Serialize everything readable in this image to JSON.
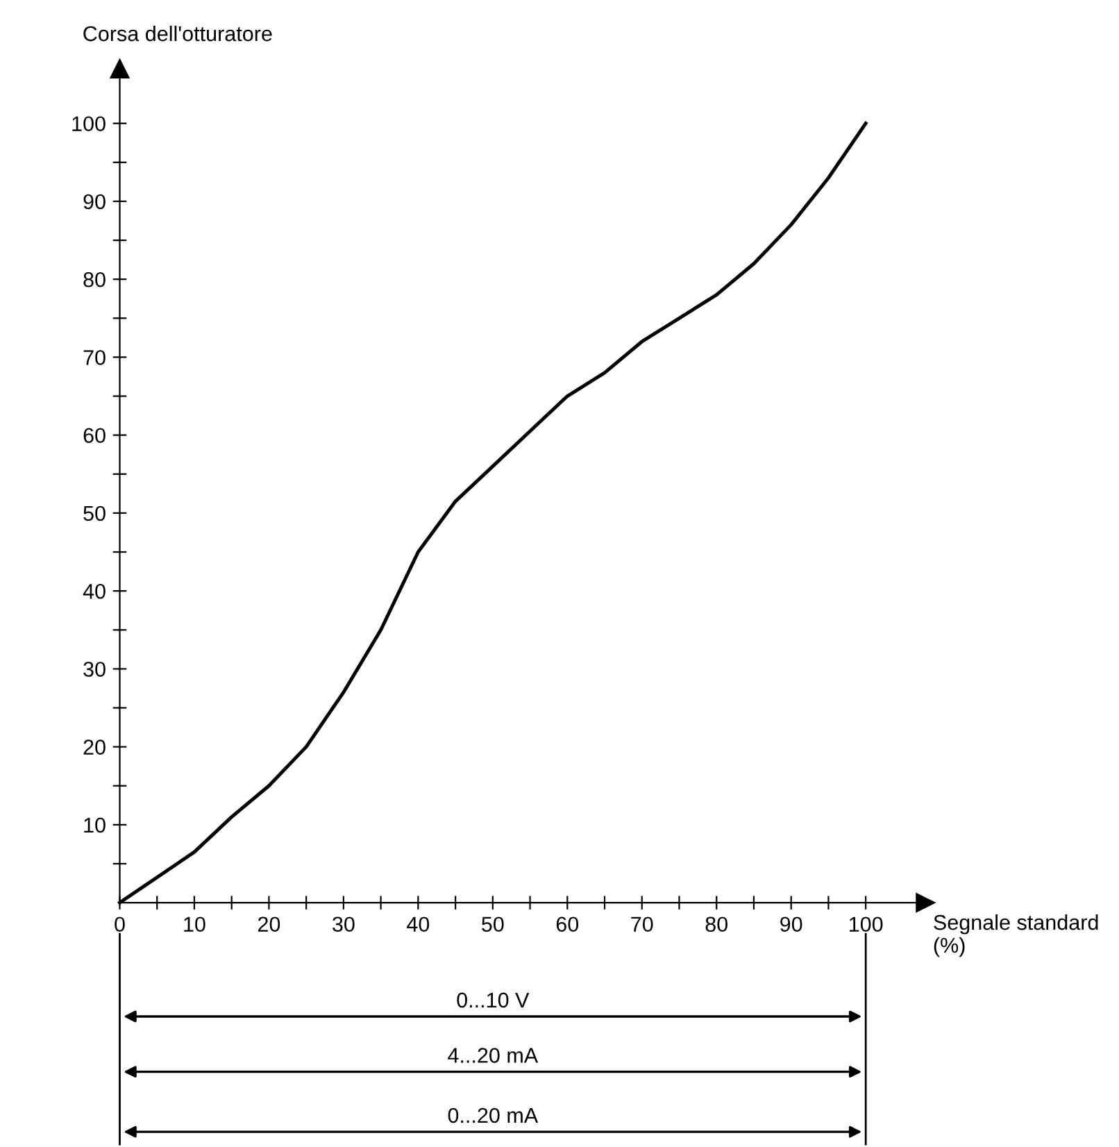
{
  "chart_data": {
    "type": "line",
    "xlabel": "Segnale standard (%)",
    "ylabel": "Corsa dell'otturatore",
    "x": [
      0,
      10,
      15,
      20,
      25,
      30,
      35,
      40,
      45,
      50,
      55,
      60,
      65,
      70,
      75,
      80,
      85,
      90,
      95,
      100
    ],
    "series": [
      {
        "color": "#000000",
        "values": [
          0,
          6.5,
          11,
          15,
          20,
          27,
          35,
          45,
          51.5,
          56,
          60.5,
          65,
          68,
          72,
          75,
          78,
          82,
          87,
          93,
          100
        ]
      }
    ],
    "xlim": [
      0,
      108
    ],
    "ylim": [
      0,
      107
    ],
    "xticks": [
      0,
      {
        "value": 5,
        "label": null
      },
      10,
      {
        "value": 15,
        "label": null
      },
      20,
      {
        "value": 25,
        "label": null
      },
      30,
      {
        "value": 35,
        "label": null
      },
      40,
      {
        "value": 45,
        "label": null
      },
      50,
      {
        "value": 55,
        "label": null
      },
      60,
      {
        "value": 65,
        "label": null
      },
      70,
      {
        "value": 75,
        "label": null
      },
      80,
      {
        "value": 85,
        "label": null
      },
      90,
      {
        "value": 95,
        "label": null
      },
      100
    ],
    "yticks": [
      {
        "value": 5,
        "label": null
      },
      10,
      {
        "value": 15,
        "label": null
      },
      20,
      {
        "value": 25,
        "label": null
      },
      30,
      {
        "value": 35,
        "label": null
      },
      40,
      {
        "value": 45,
        "label": null
      },
      50,
      {
        "value": 55,
        "label": null
      },
      60,
      {
        "value": 65,
        "label": null
      },
      70,
      {
        "value": 75,
        "label": null
      },
      80,
      {
        "value": 85,
        "label": null
      },
      90,
      {
        "value": 95,
        "label": null
      },
      100
    ],
    "annotations": [
      "0...10 V",
      "4...20 mA",
      "0...20 mA"
    ],
    "grid": false,
    "legend": false,
    "marker": "none",
    "line_style": "solid"
  }
}
